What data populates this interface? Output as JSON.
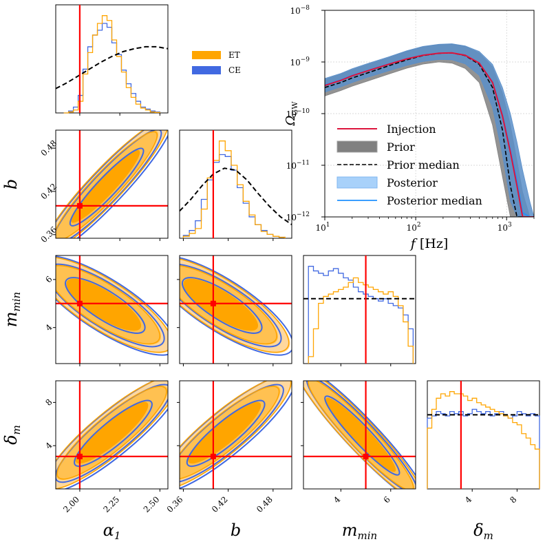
{
  "chart_data": [
    {
      "type": "corner",
      "title": "",
      "parameters": [
        {
          "key": "alpha1",
          "label": "α",
          "sub": "1",
          "injection": 2.0,
          "range": [
            1.85,
            2.55
          ],
          "ticks": [
            "2.00",
            "2.25",
            "2.50"
          ],
          "tick_values": [
            2.0,
            2.25,
            2.5
          ]
        },
        {
          "key": "b",
          "label": "b",
          "sub": "",
          "injection": 0.4,
          "range": [
            0.355,
            0.505
          ],
          "ticks": [
            "0.36",
            "0.42",
            "0.48"
          ],
          "tick_values": [
            0.36,
            0.42,
            0.48
          ]
        },
        {
          "key": "mmin",
          "label": "m",
          "sub": "min",
          "injection": 5.0,
          "range": [
            2.5,
            7.0
          ],
          "ticks": [
            "4",
            "6"
          ],
          "tick_values": [
            4,
            6
          ]
        },
        {
          "key": "deltam",
          "label": "δ",
          "sub": "m",
          "injection": 3.0,
          "range": [
            0.0,
            10.0
          ],
          "ticks": [
            "4",
            "8"
          ],
          "tick_values": [
            4,
            8
          ]
        }
      ],
      "series": [
        {
          "name": "ET",
          "color": "#FFA500"
        },
        {
          "name": "CE",
          "color": "#4169E1"
        }
      ],
      "marginals": {
        "alpha1": {
          "bins": [
            1.9,
            1.93,
            1.96,
            1.99,
            2.02,
            2.05,
            2.08,
            2.11,
            2.14,
            2.17,
            2.2,
            2.23,
            2.26,
            2.29,
            2.32,
            2.35,
            2.38,
            2.41,
            2.44,
            2.47,
            2.5
          ],
          "ET": [
            0,
            1,
            3,
            12,
            40,
            62,
            80,
            92,
            100,
            95,
            75,
            58,
            42,
            26,
            16,
            9,
            5,
            3,
            1,
            0.5
          ],
          "CE": [
            0,
            2,
            6,
            18,
            45,
            68,
            80,
            85,
            92,
            88,
            72,
            60,
            44,
            30,
            20,
            12,
            6,
            4,
            2,
            1
          ],
          "prior": [
            0.25,
            0.31,
            0.38,
            0.45,
            0.52,
            0.58,
            0.63,
            0.66,
            0.68,
            0.68,
            0.66
          ],
          "prior_x": [
            1.85,
            1.92,
            1.99,
            2.06,
            2.13,
            2.2,
            2.27,
            2.34,
            2.41,
            2.48,
            2.55
          ]
        },
        "b": {
          "bins": [
            0.36,
            0.368,
            0.376,
            0.384,
            0.392,
            0.4,
            0.408,
            0.416,
            0.424,
            0.432,
            0.44,
            0.448,
            0.456,
            0.464,
            0.472,
            0.48,
            0.488,
            0.496
          ],
          "ET": [
            2,
            5,
            10,
            30,
            62,
            80,
            100,
            90,
            75,
            55,
            38,
            24,
            14,
            7,
            4,
            2,
            1
          ],
          "CE": [
            3,
            8,
            18,
            40,
            60,
            78,
            86,
            84,
            70,
            52,
            36,
            22,
            14,
            8,
            4,
            2,
            1
          ],
          "prior": [
            0.28,
            0.4,
            0.54,
            0.66,
            0.72,
            0.7,
            0.6,
            0.46,
            0.33,
            0.22,
            0.14
          ],
          "prior_x": [
            0.355,
            0.37,
            0.385,
            0.4,
            0.415,
            0.43,
            0.445,
            0.46,
            0.475,
            0.49,
            0.505
          ]
        },
        "mmin": {
          "bins": [
            2.7,
            2.9,
            3.1,
            3.3,
            3.5,
            3.7,
            3.9,
            4.1,
            4.3,
            4.5,
            4.7,
            4.9,
            5.1,
            5.3,
            5.5,
            5.7,
            5.9,
            6.1,
            6.3,
            6.5,
            6.7,
            6.9
          ],
          "ET": [
            6,
            30,
            52,
            58,
            60,
            62,
            64,
            66,
            70,
            74,
            70,
            68,
            66,
            64,
            62,
            60,
            62,
            58,
            50,
            36,
            15
          ],
          "CE": [
            84,
            80,
            78,
            76,
            80,
            82,
            78,
            74,
            72,
            66,
            62,
            60,
            58,
            56,
            54,
            56,
            52,
            50,
            48,
            42,
            30
          ],
          "prior_level": 56
        },
        "deltam": {
          "bins": [
            0,
            0.4,
            0.8,
            1.2,
            1.6,
            2.0,
            2.4,
            2.8,
            3.2,
            3.6,
            4.0,
            4.4,
            4.8,
            5.2,
            5.6,
            6.0,
            6.4,
            6.8,
            7.2,
            7.6,
            8.0,
            8.4,
            8.8,
            9.2,
            9.6,
            10.0
          ],
          "ET": [
            55,
            72,
            82,
            86,
            84,
            88,
            86,
            86,
            84,
            80,
            82,
            78,
            76,
            74,
            72,
            70,
            68,
            66,
            64,
            60,
            58,
            50,
            46,
            40,
            36
          ],
          "CE": [
            64,
            66,
            70,
            68,
            66,
            70,
            68,
            70,
            66,
            68,
            72,
            70,
            68,
            70,
            66,
            68,
            70,
            66,
            64,
            66,
            70,
            68,
            66,
            68,
            66
          ],
          "prior_level": 67
        }
      },
      "contours": {
        "alpha1_b": {
          "center": [
            2.16,
            0.427
          ],
          "slope": 0.33,
          "corr": 0.9
        },
        "alpha1_mmin": {
          "center": [
            2.15,
            4.95
          ],
          "corr": -0.6
        },
        "b_mmin": {
          "center": [
            0.41,
            4.95
          ],
          "corr": -0.6
        },
        "alpha1_deltam": {
          "center": [
            2.2,
            5.2
          ],
          "corr": 0.75
        },
        "b_deltam": {
          "center": [
            0.415,
            5.2
          ],
          "corr": 0.75
        },
        "mmin_deltam": {
          "center": [
            4.8,
            5.0
          ],
          "corr": -0.95
        }
      }
    },
    {
      "type": "line",
      "title": "",
      "xlabel": "f [Hz]",
      "ylabel": "Ω_GW",
      "ylabel_main": "Ω",
      "ylabel_sub": "GW",
      "xscale": "log",
      "yscale": "log",
      "xlim": [
        10,
        2000
      ],
      "ylim": [
        1e-12,
        1e-08
      ],
      "x_ticks": [
        "10",
        "10",
        "10"
      ],
      "x_tick_exps": [
        "1",
        "2",
        "3"
      ],
      "x_tick_values": [
        10,
        100,
        1000
      ],
      "y_ticks": [
        "10",
        "10",
        "10",
        "10",
        "10"
      ],
      "y_tick_exps": [
        "−12",
        "−11",
        "−10",
        "−9",
        "−8"
      ],
      "y_tick_values": [
        1e-12,
        1e-11,
        1e-10,
        1e-09,
        1e-08
      ],
      "x": [
        10,
        15,
        20,
        30,
        50,
        80,
        120,
        180,
        250,
        350,
        500,
        700,
        900,
        1100,
        1300,
        1500,
        1800,
        2000
      ],
      "series": [
        {
          "name": "Injection",
          "color": "#DC143C",
          "values": [
            3.5e-10,
            4.4e-10,
            5.4e-10,
            6.8e-10,
            9e-10,
            1.15e-09,
            1.35e-09,
            1.48e-09,
            1.5e-09,
            1.35e-09,
            9.5e-10,
            4e-10,
            9e-11,
            1.8e-11,
            4e-12,
            1e-12,
            1e-12,
            1e-12
          ]
        },
        {
          "name": "Prior median",
          "color": "#000000",
          "values": [
            3.2e-10,
            4e-10,
            4.9e-10,
            6.2e-10,
            8.4e-10,
            1.1e-09,
            1.33e-09,
            1.47e-09,
            1.5e-09,
            1.33e-09,
            9e-10,
            3.2e-10,
            4.8e-11,
            4e-12,
            1e-12,
            1e-12,
            1e-12,
            1e-12
          ]
        },
        {
          "name": "Posterior median",
          "color": "#1E90FF",
          "values": [
            3.6e-10,
            4.5e-10,
            5.5e-10,
            6.9e-10,
            9.1e-10,
            1.16e-09,
            1.36e-09,
            1.48e-09,
            1.5e-09,
            1.36e-09,
            9.6e-10,
            4.1e-10,
            9.5e-11,
            2e-11,
            5e-12,
            1.2e-12,
            1e-12,
            1e-12
          ]
        }
      ],
      "bands": [
        {
          "name": "Prior",
          "color": "#808080",
          "lower": [
            2.2e-10,
            2.8e-10,
            3.4e-10,
            4.3e-10,
            5.8e-10,
            7.6e-10,
            9.1e-10,
            1e-09,
            9.5e-10,
            7.5e-10,
            4e-10,
            6e-11,
            6e-12,
            1e-12,
            1e-12,
            1e-12,
            1e-12,
            1e-12
          ],
          "upper": [
            4.6e-10,
            5.8e-10,
            7.1e-10,
            9e-10,
            1.2e-09,
            1.6e-09,
            1.95e-09,
            2.15e-09,
            2.2e-09,
            2e-09,
            1.5e-09,
            8e-10,
            2.5e-10,
            6e-11,
            1.2e-11,
            3e-12,
            1e-12,
            1e-12
          ]
        },
        {
          "name": "Posterior",
          "color": "#5B8FC9",
          "lower": [
            2.6e-10,
            3.3e-10,
            4e-10,
            5.1e-10,
            6.7e-10,
            8.6e-10,
            1.02e-09,
            1.12e-09,
            1.1e-09,
            9.2e-10,
            5.5e-10,
            1.3e-10,
            1.6e-11,
            2e-12,
            1e-12,
            1e-12,
            1e-12,
            1e-12
          ],
          "upper": [
            4.8e-10,
            6e-10,
            7.4e-10,
            9.4e-10,
            1.25e-09,
            1.65e-09,
            2e-09,
            2.2e-09,
            2.25e-09,
            2.05e-09,
            1.6e-09,
            9e-10,
            3.2e-10,
            1e-10,
            2.8e-11,
            8e-12,
            2e-12,
            1e-12
          ]
        }
      ],
      "legend": [
        "Injection",
        "Prior",
        "Prior median",
        "Posterior",
        "Posterior median"
      ],
      "legend_position": "lower-left",
      "grid": true
    }
  ]
}
